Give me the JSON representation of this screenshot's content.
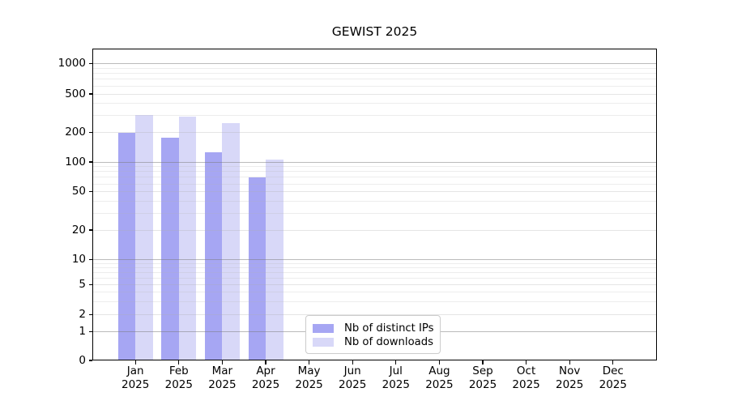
{
  "chart_data": {
    "type": "bar",
    "title": "GEWIST 2025",
    "categories": [
      "Jan\n2025",
      "Feb\n2025",
      "Mar\n2025",
      "Apr\n2025",
      "May\n2025",
      "Jun\n2025",
      "Jul\n2025",
      "Aug\n2025",
      "Sep\n2025",
      "Oct\n2025",
      "Nov\n2025",
      "Dec\n2025"
    ],
    "series": [
      {
        "name": "Nb of distinct IPs",
        "color": "#a6a6f3",
        "values": [
          197,
          175,
          125,
          70,
          null,
          null,
          null,
          null,
          null,
          null,
          null,
          null
        ]
      },
      {
        "name": "Nb of downloads",
        "color": "#d8d8f8",
        "values": [
          300,
          290,
          250,
          105,
          null,
          null,
          null,
          null,
          null,
          null,
          null,
          null
        ]
      }
    ],
    "xlabel": "",
    "ylabel": "",
    "yscale": "symlog",
    "yticks": [
      0,
      1,
      2,
      5,
      10,
      20,
      50,
      100,
      200,
      500,
      1000
    ],
    "ytick_decades": [
      1,
      10,
      100,
      1000
    ],
    "yminor_gridlines": [
      3,
      4,
      6,
      7,
      8,
      9,
      30,
      40,
      60,
      70,
      80,
      90,
      300,
      400,
      600,
      700,
      800,
      900
    ],
    "ylim": [
      0,
      1400
    ],
    "grid": "horizontal major + log-minor gridlines, drawn above bars",
    "legend_position": "lower center"
  }
}
